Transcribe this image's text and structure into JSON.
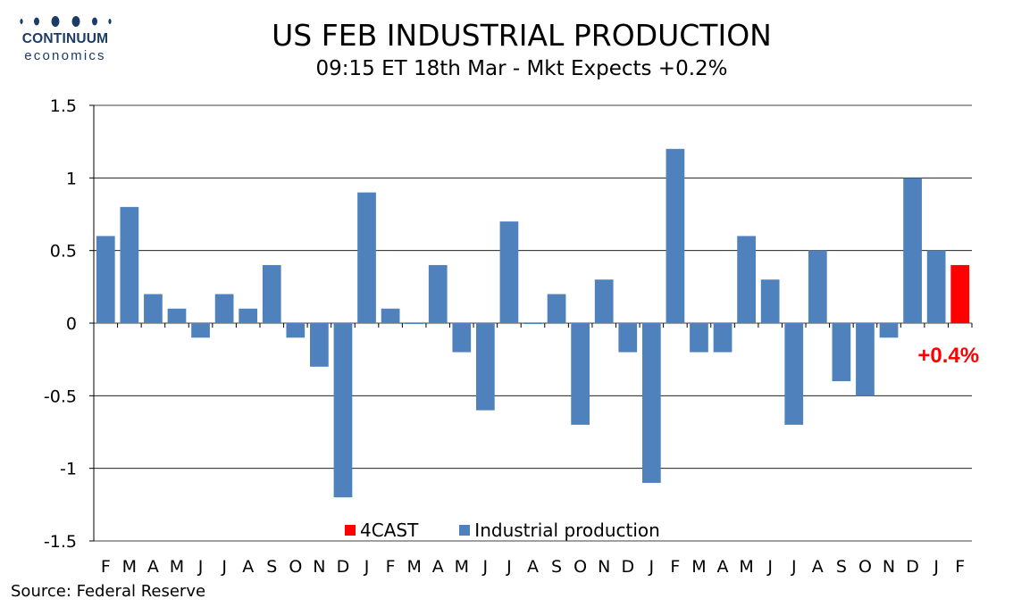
{
  "logo": {
    "word": "CONTINUUM",
    "sub": "economics",
    "color": "#1c3b66"
  },
  "header": {
    "title": "US FEB INDUSTRIAL PRODUCTION",
    "subtitle": "09:15 ET 18th Mar - Mkt Expects +0.2%"
  },
  "footer": {
    "source": "Source: Federal Reserve"
  },
  "chart_data": {
    "type": "bar",
    "title": "US FEB INDUSTRIAL PRODUCTION",
    "subtitle": "09:15 ET 18th Mar - Mkt Expects +0.2%",
    "xlabel": "",
    "ylabel": "",
    "ylim": [
      -1.5,
      1.5
    ],
    "yticks": [
      1.5,
      1,
      0.5,
      0,
      -0.5,
      -1,
      -1.5
    ],
    "grid": "horizontal",
    "legend_position": "bottom",
    "categories": [
      "F",
      "M",
      "A",
      "M",
      "J",
      "J",
      "A",
      "S",
      "O",
      "N",
      "D",
      "J",
      "F",
      "M",
      "A",
      "M",
      "J",
      "J",
      "A",
      "S",
      "O",
      "N",
      "D",
      "J",
      "F",
      "M",
      "A",
      "M",
      "J",
      "J",
      "A",
      "S",
      "O",
      "N",
      "D",
      "J",
      "F"
    ],
    "series": [
      {
        "name": "Industrial production",
        "color": "#4f81bd",
        "values": [
          0.6,
          0.8,
          0.2,
          0.1,
          -0.1,
          0.2,
          0.1,
          0.4,
          -0.1,
          -0.3,
          -1.2,
          0.9,
          0.1,
          0.0,
          0.4,
          -0.2,
          -0.6,
          0.7,
          0.0,
          0.2,
          -0.7,
          0.3,
          -0.2,
          -1.1,
          1.2,
          -0.2,
          -0.2,
          0.6,
          0.3,
          -0.7,
          0.5,
          -0.4,
          -0.5,
          -0.1,
          1.0,
          0.5,
          null
        ]
      },
      {
        "name": "4CAST",
        "color": "#ff0000",
        "values": [
          null,
          null,
          null,
          null,
          null,
          null,
          null,
          null,
          null,
          null,
          null,
          null,
          null,
          null,
          null,
          null,
          null,
          null,
          null,
          null,
          null,
          null,
          null,
          null,
          null,
          null,
          null,
          null,
          null,
          null,
          null,
          null,
          null,
          null,
          null,
          null,
          0.4
        ]
      }
    ],
    "annotations": [
      {
        "text": "+0.4%",
        "color": "#ff0000"
      }
    ],
    "legend": [
      {
        "label": "4CAST",
        "color": "#ff0000"
      },
      {
        "label": "Industrial production",
        "color": "#4f81bd"
      }
    ]
  }
}
